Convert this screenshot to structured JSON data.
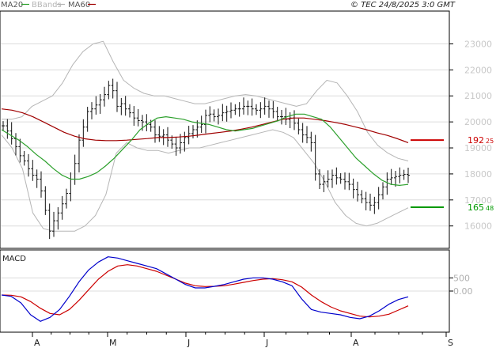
{
  "chart_data": {
    "type": "stock-ohlc",
    "legend": [
      {
        "name": "MA20",
        "color": "#2ca02c"
      },
      {
        "name": "BBands",
        "color": "#b5b5b5"
      },
      {
        "name": "MA60",
        "color": "#a00000"
      }
    ],
    "copyright": "© TEC 24/8/2025 3:0 GMT",
    "price_axis": {
      "ticks": [
        "16000",
        "17000",
        "18000",
        "19000",
        "20000",
        "21000",
        "22000",
        "23000"
      ],
      "min": 15200,
      "max": 24200
    },
    "macd_axis": {
      "ticks": [
        "0.00",
        "500"
      ],
      "min": -1500,
      "max": 1500
    },
    "x_labels": [
      "A",
      "M",
      "J",
      "J",
      "A",
      "S"
    ],
    "current_values": [
      {
        "int": "192",
        "dec": "25",
        "color": "#cc0000",
        "price": 19300
      },
      {
        "int": "165",
        "dec": "48",
        "color": "#009900",
        "price": 16720
      }
    ],
    "macd_title": "MACD",
    "closes": [
      19850,
      19650,
      19350,
      19050,
      18700,
      18500,
      18200,
      17950,
      17800,
      17350,
      16600,
      15800,
      16200,
      16500,
      16850,
      17250,
      17800,
      18400,
      19300,
      19800,
      20400,
      20500,
      20650,
      20850,
      21050,
      21400,
      21200,
      20600,
      20700,
      20500,
      20350,
      20150,
      20050,
      20000,
      19900,
      19800,
      19500,
      19450,
      19500,
      19300,
      19150,
      19000,
      19200,
      19400,
      19550,
      19700,
      19800,
      19900,
      20250,
      20300,
      20200,
      20250,
      20350,
      20400,
      20450,
      20500,
      20500,
      20600,
      20600,
      20500,
      20450,
      20500,
      20600,
      20500,
      20400,
      20200,
      20200,
      20100,
      20150,
      19950,
      19700,
      19500,
      19400,
      19200,
      18000,
      17600,
      17700,
      17800,
      17950,
      17850,
      17800,
      17700,
      17600,
      17400,
      17200,
      17050,
      16900,
      16800,
      16900,
      17200,
      17500,
      17800,
      17850,
      17900,
      17950,
      17980,
      17950
    ],
    "ma20": [
      19700,
      19500,
      19300,
      19050,
      18750,
      18500,
      18200,
      17950,
      17800,
      17800,
      17900,
      18050,
      18300,
      18600,
      18950,
      19300,
      19700,
      19950,
      20150,
      20200,
      20150,
      20100,
      20000,
      19950,
      19900,
      19800,
      19700,
      19650,
      19700,
      19750,
      19850,
      19950,
      20050,
      20200,
      20300,
      20300,
      20200,
      20100,
      19800,
      19400,
      19000,
      18600,
      18300,
      18000,
      17750,
      17600,
      17560,
      17600
    ],
    "ma60": [
      20500,
      20450,
      20350,
      20200,
      20000,
      19800,
      19600,
      19450,
      19350,
      19300,
      19280,
      19280,
      19300,
      19330,
      19360,
      19400,
      19400,
      19420,
      19450,
      19500,
      19550,
      19600,
      19650,
      19720,
      19800,
      19900,
      20000,
      20100,
      20150,
      20150,
      20100,
      20050,
      19980,
      19900,
      19800,
      19700,
      19580,
      19480,
      19350,
      19200
    ],
    "bb_upper": [
      20100,
      20100,
      20200,
      20600,
      20800,
      21000,
      21500,
      22200,
      22700,
      23000,
      23100,
      22300,
      21600,
      21300,
      21100,
      21000,
      21000,
      20900,
      20800,
      20700,
      20700,
      20800,
      20900,
      21000,
      21050,
      21000,
      20900,
      20800,
      20700,
      20600,
      20700,
      21200,
      21600,
      21500,
      21000,
      20400,
      19600,
      19100,
      18800,
      18600,
      18500
    ],
    "bb_lower": [
      19500,
      19000,
      18200,
      16500,
      15900,
      15800,
      15800,
      15800,
      16000,
      16400,
      17200,
      18800,
      19200,
      19000,
      18900,
      18900,
      18800,
      18900,
      19000,
      19000,
      19100,
      19200,
      19300,
      19400,
      19500,
      19600,
      19700,
      19600,
      19400,
      18900,
      18400,
      17700,
      16900,
      16400,
      16100,
      16000,
      16100,
      16300,
      16500,
      16700
    ],
    "macd": [
      -150,
      -200,
      -450,
      -900,
      -1150,
      -1000,
      -700,
      -200,
      350,
      800,
      1100,
      1300,
      1250,
      1150,
      1050,
      950,
      850,
      650,
      450,
      250,
      120,
      120,
      180,
      250,
      350,
      450,
      500,
      500,
      450,
      350,
      200,
      -300,
      -700,
      -800,
      -850,
      -900,
      -1000,
      -1050,
      -950,
      -750,
      -500,
      -320,
      -220
    ],
    "signal": [
      -150,
      -160,
      -220,
      -400,
      -650,
      -850,
      -900,
      -700,
      -350,
      50,
      450,
      750,
      950,
      1000,
      950,
      850,
      750,
      600,
      450,
      300,
      200,
      170,
      180,
      200,
      260,
      330,
      400,
      450,
      470,
      430,
      350,
      150,
      -150,
      -400,
      -600,
      -750,
      -850,
      -950,
      -980,
      -950,
      -880,
      -720,
      -560
    ]
  }
}
